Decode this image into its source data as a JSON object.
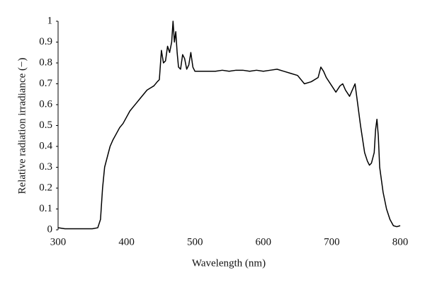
{
  "chart_data": {
    "type": "line",
    "x_label": "Wavelength (nm)",
    "y_label": "Relative radiation irradiance (−)",
    "xlim": [
      300,
      800
    ],
    "xticks": [
      300,
      400,
      500,
      600,
      700,
      800
    ],
    "ylim": [
      0,
      1
    ],
    "yticks": [
      0,
      0.1,
      0.2,
      0.3,
      0.4,
      0.5,
      0.6,
      0.7,
      0.8,
      0.9,
      1
    ],
    "color": "#000000",
    "x": [
      300,
      310,
      320,
      330,
      340,
      350,
      358,
      362,
      365,
      368,
      372,
      376,
      380,
      385,
      390,
      395,
      400,
      405,
      410,
      415,
      420,
      425,
      430,
      435,
      440,
      445,
      448,
      451,
      454,
      457,
      460,
      463,
      466,
      468,
      470,
      472,
      474,
      476,
      479,
      482,
      485,
      488,
      491,
      494,
      497,
      500,
      510,
      520,
      530,
      540,
      550,
      560,
      570,
      580,
      590,
      600,
      610,
      620,
      630,
      640,
      650,
      660,
      670,
      680,
      684,
      688,
      692,
      700,
      706,
      712,
      716,
      720,
      726,
      730,
      734,
      738,
      742,
      748,
      752,
      755,
      758,
      762,
      764,
      766,
      768,
      770,
      775,
      780,
      785,
      790,
      795,
      800
    ],
    "values": [
      0.01,
      0.005,
      0.005,
      0.005,
      0.005,
      0.005,
      0.01,
      0.05,
      0.2,
      0.3,
      0.35,
      0.4,
      0.43,
      0.46,
      0.49,
      0.51,
      0.54,
      0.57,
      0.59,
      0.61,
      0.63,
      0.65,
      0.67,
      0.68,
      0.69,
      0.71,
      0.72,
      0.86,
      0.8,
      0.81,
      0.88,
      0.85,
      0.9,
      1.0,
      0.9,
      0.95,
      0.85,
      0.78,
      0.77,
      0.84,
      0.82,
      0.77,
      0.79,
      0.85,
      0.78,
      0.76,
      0.76,
      0.76,
      0.76,
      0.765,
      0.76,
      0.765,
      0.765,
      0.76,
      0.765,
      0.76,
      0.765,
      0.77,
      0.76,
      0.75,
      0.74,
      0.7,
      0.71,
      0.73,
      0.78,
      0.76,
      0.73,
      0.69,
      0.66,
      0.69,
      0.7,
      0.67,
      0.64,
      0.67,
      0.7,
      0.6,
      0.5,
      0.37,
      0.33,
      0.31,
      0.32,
      0.37,
      0.48,
      0.53,
      0.45,
      0.3,
      0.18,
      0.1,
      0.05,
      0.02,
      0.015,
      0.02
    ]
  }
}
